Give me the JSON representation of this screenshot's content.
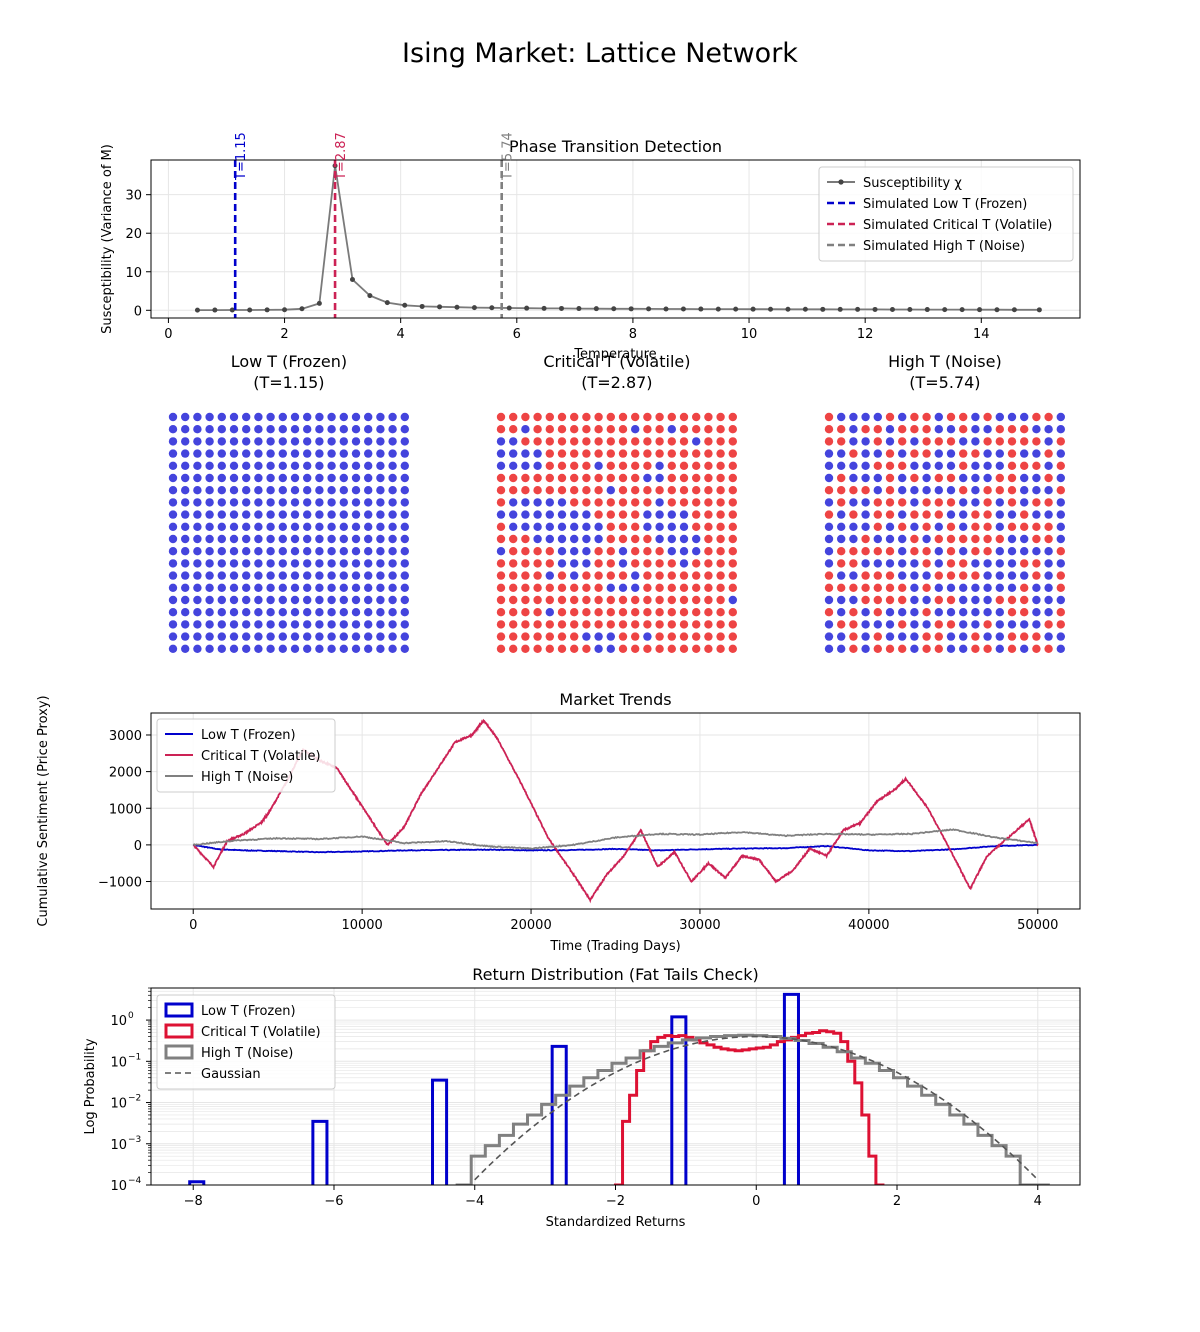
{
  "figure": {
    "suptitle": "Ising Market: Lattice Network"
  },
  "colors": {
    "low": "#0000cc",
    "critical": "#cc2255",
    "high": "#808080",
    "susceptibility": "#7a7a7a",
    "spin_up": "#ee4444",
    "spin_down": "#4444dd",
    "grid": "#e6e6e6",
    "hist_critical": "#dd1133"
  },
  "chart_data": [
    {
      "id": "phase",
      "type": "line",
      "title": "Phase Transition Detection",
      "xlabel": "Temperature",
      "ylabel": "Susceptibility (Variance of M)",
      "xlim": [
        -0.3,
        15.7
      ],
      "ylim": [
        -2,
        39
      ],
      "xticks": [
        0,
        2,
        4,
        6,
        8,
        10,
        12,
        14
      ],
      "yticks": [
        0,
        10,
        20,
        30
      ],
      "series": [
        {
          "name": "Susceptibility χ",
          "x": [
            0.5,
            0.8,
            1.1,
            1.4,
            1.7,
            2.0,
            2.3,
            2.6,
            2.87,
            3.17,
            3.47,
            3.77,
            4.07,
            4.37,
            4.67,
            4.97,
            5.27,
            5.57,
            5.87,
            6.17,
            6.47,
            6.77,
            7.07,
            7.37,
            7.67,
            7.97,
            8.27,
            8.57,
            8.87,
            9.17,
            9.47,
            9.77,
            10.07,
            10.37,
            10.67,
            10.97,
            11.27,
            11.57,
            11.87,
            12.17,
            12.47,
            12.77,
            13.07,
            13.37,
            13.67,
            13.97,
            14.27,
            14.57,
            15.0
          ],
          "y": [
            0.05,
            0.06,
            0.07,
            0.08,
            0.1,
            0.15,
            0.4,
            1.8,
            37.5,
            8,
            3.8,
            2.0,
            1.3,
            1.0,
            0.9,
            0.8,
            0.7,
            0.65,
            0.6,
            0.55,
            0.5,
            0.48,
            0.45,
            0.42,
            0.4,
            0.38,
            0.36,
            0.34,
            0.33,
            0.32,
            0.31,
            0.3,
            0.29,
            0.28,
            0.27,
            0.26,
            0.25,
            0.24,
            0.23,
            0.22,
            0.21,
            0.2,
            0.19,
            0.18,
            0.17,
            0.16,
            0.15,
            0.14,
            0.12
          ]
        }
      ],
      "vlines": [
        {
          "name": "Simulated Low T (Frozen)",
          "x": 1.15,
          "label": "T=1.15",
          "color_key": "low"
        },
        {
          "name": "Simulated Critical T (Volatile)",
          "x": 2.87,
          "label": "T=2.87",
          "color_key": "critical"
        },
        {
          "name": "Simulated High T (Noise)",
          "x": 5.74,
          "label": "T=5.74",
          "color_key": "high"
        }
      ],
      "legend": "top-right"
    },
    {
      "id": "lattices",
      "type": "heatmap",
      "grid_size": 20,
      "panels": [
        {
          "title": "Low T (Frozen)",
          "subtitle": "(T=1.15)",
          "T": 1.15,
          "up_fraction": 0.0,
          "seed": 11
        },
        {
          "title": "Critical T (Volatile)",
          "subtitle": "(T=2.87)",
          "T": 2.87,
          "up_fraction": 0.6,
          "seed": 23
        },
        {
          "title": "High T (Noise)",
          "subtitle": "(T=5.74)",
          "T": 5.74,
          "up_fraction": 0.45,
          "seed": 37
        }
      ]
    },
    {
      "id": "trends",
      "type": "line",
      "title": "Market Trends",
      "xlabel": "Time (Trading Days)",
      "ylabel": "Cumulative Sentiment (Price Proxy)",
      "xlim": [
        -2500,
        52500
      ],
      "ylim": [
        -1750,
        3600
      ],
      "xticks": [
        0,
        10000,
        20000,
        30000,
        40000,
        50000
      ],
      "yticks": [
        -1000,
        0,
        1000,
        2000,
        3000
      ],
      "ytick_labels": [
        "−1000",
        "0",
        "1000",
        "2000",
        "3000"
      ],
      "series": [
        {
          "name": "Low T (Frozen)",
          "color_key": "low",
          "x": [
            0,
            1500,
            3000,
            5000,
            7500,
            10000,
            12500,
            15000,
            17500,
            20000,
            22500,
            25000,
            27500,
            30000,
            32500,
            35000,
            37500,
            40000,
            42500,
            45000,
            47500,
            50000
          ],
          "y": [
            0,
            -120,
            -150,
            -170,
            -200,
            -180,
            -150,
            -140,
            -130,
            -150,
            -140,
            -110,
            -150,
            -120,
            -100,
            -90,
            -30,
            -150,
            -170,
            -120,
            -30,
            0
          ]
        },
        {
          "name": "Critical T (Volatile)",
          "color_key": "critical",
          "x": [
            0,
            1200,
            2000,
            3000,
            4000,
            4500,
            5500,
            6500,
            7500,
            8500,
            9500,
            10500,
            11500,
            12500,
            13500,
            14500,
            15500,
            16500,
            17200,
            18000,
            19500,
            21000,
            22500,
            23500,
            24500,
            25500,
            26500,
            27500,
            28500,
            29500,
            30500,
            31500,
            32500,
            33500,
            34500,
            35500,
            36500,
            37500,
            38500,
            39500,
            40500,
            41500,
            42200,
            43500,
            45000,
            46000,
            47000,
            48500,
            49500,
            50000
          ],
          "y": [
            0,
            -600,
            100,
            300,
            600,
            900,
            1700,
            2600,
            2300,
            2100,
            1400,
            700,
            0,
            500,
            1400,
            2100,
            2800,
            3000,
            3400,
            2900,
            1600,
            200,
            -800,
            -1500,
            -800,
            -300,
            400,
            -600,
            -200,
            -1000,
            -500,
            -900,
            -300,
            -400,
            -1000,
            -700,
            -100,
            -300,
            400,
            600,
            1200,
            1500,
            1800,
            1000,
            -300,
            -1200,
            -300,
            300,
            700,
            0
          ]
        },
        {
          "name": "High T (Noise)",
          "color_key": "high",
          "x": [
            0,
            2500,
            5000,
            7500,
            10000,
            12500,
            15000,
            17500,
            20000,
            22500,
            25000,
            27500,
            30000,
            32500,
            35000,
            37500,
            40000,
            42500,
            45000,
            47500,
            50000
          ],
          "y": [
            0,
            120,
            180,
            160,
            230,
            50,
            100,
            -40,
            -100,
            0,
            200,
            300,
            280,
            350,
            250,
            300,
            280,
            300,
            420,
            200,
            50
          ]
        }
      ],
      "legend": "top-left"
    },
    {
      "id": "returns",
      "type": "bar",
      "title": "Return Distribution (Fat Tails Check)",
      "xlabel": "Standardized Returns",
      "ylabel": "Log Probability",
      "xlim": [
        -8.6,
        4.6
      ],
      "ylog": true,
      "ylim": [
        0.0001,
        6
      ],
      "xticks": [
        -8,
        -6,
        -4,
        -2,
        0,
        2,
        4
      ],
      "xtick_labels": [
        "−8",
        "−6",
        "−4",
        "−2",
        "0",
        "2",
        "4"
      ],
      "ytick_labels": [
        "10",
        "10",
        "10",
        "10",
        "10"
      ],
      "ytick_exponents": [
        "−4",
        "−3",
        "−2",
        "−1",
        "0"
      ],
      "series": [
        {
          "name": "Low T (Frozen)",
          "color_key": "low",
          "bars": [
            [
              -8.05,
              -7.85,
              0.00012
            ],
            [
              -6.3,
              -6.1,
              0.0035
            ],
            [
              -4.6,
              -4.4,
              0.035
            ],
            [
              -2.9,
              -2.7,
              0.23
            ],
            [
              -1.2,
              -1.0,
              1.2
            ],
            [
              0.4,
              0.6,
              4.2
            ]
          ]
        },
        {
          "name": "Critical T (Volatile)",
          "color_key": "hist_critical",
          "step_x": [
            -1.95,
            -1.85,
            -1.75,
            -1.65,
            -1.55,
            -1.45,
            -1.35,
            -1.25,
            -1.15,
            -1.05,
            -0.95,
            -0.85,
            -0.75,
            -0.65,
            -0.55,
            -0.45,
            -0.35,
            -0.25,
            -0.15,
            -0.05,
            0.05,
            0.15,
            0.25,
            0.35,
            0.45,
            0.55,
            0.65,
            0.75,
            0.85,
            0.95,
            1.05,
            1.15,
            1.25,
            1.35,
            1.45,
            1.55,
            1.65,
            1.75
          ],
          "step_y": [
            0.0001,
            0.0035,
            0.015,
            0.06,
            0.18,
            0.3,
            0.38,
            0.42,
            0.4,
            0.42,
            0.38,
            0.33,
            0.28,
            0.25,
            0.22,
            0.2,
            0.19,
            0.18,
            0.19,
            0.2,
            0.21,
            0.22,
            0.25,
            0.3,
            0.33,
            0.38,
            0.42,
            0.48,
            0.5,
            0.55,
            0.52,
            0.48,
            0.3,
            0.1,
            0.03,
            0.005,
            0.0005,
            0.0001
          ]
        },
        {
          "name": "High T (Noise)",
          "color_key": "high",
          "step_x": [
            -4.15,
            -3.95,
            -3.75,
            -3.55,
            -3.35,
            -3.15,
            -2.95,
            -2.75,
            -2.55,
            -2.35,
            -2.15,
            -1.95,
            -1.75,
            -1.55,
            -1.35,
            -1.15,
            -0.95,
            -0.75,
            -0.55,
            -0.35,
            -0.15,
            0.05,
            0.25,
            0.45,
            0.65,
            0.85,
            1.05,
            1.25,
            1.45,
            1.65,
            1.85,
            2.05,
            2.25,
            2.45,
            2.65,
            2.85,
            3.05,
            3.25,
            3.45,
            3.65,
            3.85,
            4.05
          ],
          "step_y": [
            0.0001,
            0.0005,
            0.0009,
            0.0016,
            0.003,
            0.005,
            0.009,
            0.015,
            0.025,
            0.04,
            0.06,
            0.09,
            0.12,
            0.18,
            0.23,
            0.28,
            0.33,
            0.37,
            0.4,
            0.42,
            0.43,
            0.42,
            0.4,
            0.36,
            0.32,
            0.27,
            0.22,
            0.17,
            0.12,
            0.09,
            0.06,
            0.04,
            0.025,
            0.015,
            0.009,
            0.005,
            0.003,
            0.0016,
            0.0009,
            0.0005,
            0.0001,
            0.0001
          ]
        },
        {
          "name": "Gaussian",
          "color_key": "high",
          "dashed": true,
          "fn": "gaussian",
          "mu": 0,
          "sigma": 1,
          "x_range": [
            -4,
            4
          ]
        }
      ],
      "legend": "top-left"
    }
  ]
}
